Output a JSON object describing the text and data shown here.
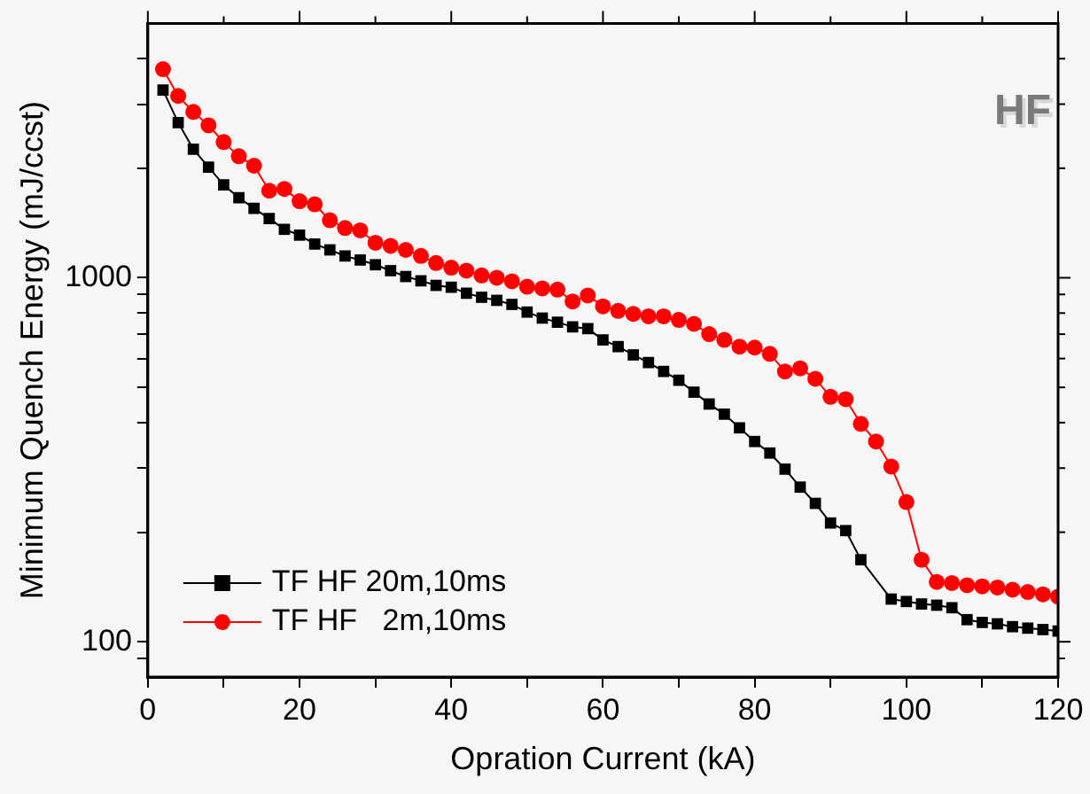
{
  "chart_data": {
    "type": "line",
    "xlabel": "Opration Current (kA)",
    "ylabel": "Minimum Quench Energy (mJ/ccst)",
    "annotations": [
      "HF"
    ],
    "log": "y",
    "grid": false,
    "legend": "bottom left",
    "line_style": "solid",
    "xlim": [
      0,
      120
    ],
    "xticks": [
      0,
      {
        "value": 10,
        "label": null
      },
      20,
      {
        "value": 30,
        "label": null
      },
      40,
      {
        "value": 50,
        "label": null
      },
      60,
      {
        "value": 70,
        "label": null
      },
      80,
      {
        "value": 90,
        "label": null
      },
      100,
      {
        "value": 110,
        "label": null
      },
      120
    ],
    "ylim": [
      80,
      5000
    ],
    "yticks": [
      {
        "value": 90,
        "label": null
      },
      100,
      {
        "value": 200,
        "label": null
      },
      {
        "value": 300,
        "label": null
      },
      {
        "value": 400,
        "label": null
      },
      {
        "value": 500,
        "label": null
      },
      {
        "value": 600,
        "label": null
      },
      {
        "value": 700,
        "label": null
      },
      {
        "value": 800,
        "label": null
      },
      {
        "value": 900,
        "label": null
      },
      1000,
      {
        "value": 2000,
        "label": null
      },
      {
        "value": 3000,
        "label": null
      },
      {
        "value": 4000,
        "label": null
      }
    ],
    "series": [
      {
        "name": "TF HF 20m,10ms",
        "color": "#000000",
        "marker": "square",
        "x": [
          2,
          4,
          6,
          8,
          10,
          12,
          14,
          16,
          18,
          20,
          22,
          24,
          26,
          28,
          30,
          32,
          34,
          36,
          38,
          40,
          42,
          44,
          46,
          48,
          50,
          52,
          54,
          56,
          58,
          60,
          62,
          64,
          66,
          68,
          70,
          72,
          74,
          76,
          78,
          80,
          82,
          84,
          86,
          88,
          90,
          92,
          94,
          98,
          100,
          102,
          104,
          106,
          108,
          110,
          112,
          114,
          116,
          118,
          120
        ],
        "values": [
          3280,
          2670,
          2255,
          2013,
          1800,
          1659,
          1551,
          1455,
          1359,
          1310,
          1238,
          1193,
          1148,
          1119,
          1086,
          1046,
          1008,
          981,
          953,
          942,
          907,
          884,
          867,
          845,
          805,
          775,
          755,
          733,
          725,
          675,
          647,
          614,
          585,
          553,
          523,
          485,
          450,
          422,
          387,
          355,
          330,
          298,
          266,
          240,
          212,
          202,
          168,
          131,
          129,
          127,
          126,
          124,
          115,
          113,
          112,
          110,
          109,
          108,
          107
        ]
      },
      {
        "name": "TF HF   2m,10ms",
        "color": "#ff0000",
        "marker": "circle",
        "x": [
          2,
          4,
          6,
          8,
          10,
          12,
          14,
          16,
          18,
          20,
          22,
          24,
          26,
          28,
          30,
          32,
          34,
          36,
          38,
          40,
          42,
          44,
          46,
          48,
          50,
          52,
          54,
          56,
          58,
          60,
          62,
          64,
          66,
          68,
          70,
          72,
          74,
          76,
          78,
          80,
          82,
          84,
          86,
          88,
          90,
          92,
          94,
          96,
          98,
          100,
          102,
          104,
          106,
          108,
          110,
          112,
          114,
          116,
          118,
          120
        ],
        "values": [
          3742,
          3160,
          2856,
          2623,
          2360,
          2157,
          2032,
          1735,
          1755,
          1623,
          1592,
          1439,
          1370,
          1350,
          1248,
          1224,
          1193,
          1148,
          1098,
          1066,
          1046,
          1015,
          1000,
          978,
          945,
          935,
          928,
          861,
          894,
          835,
          811,
          796,
          784,
          784,
          766,
          747,
          700,
          675,
          647,
          643,
          618,
          553,
          564,
          528,
          471,
          464,
          397,
          355,
          303,
          242,
          168,
          146,
          145,
          143,
          142,
          141,
          139,
          137,
          135,
          133
        ]
      }
    ]
  }
}
